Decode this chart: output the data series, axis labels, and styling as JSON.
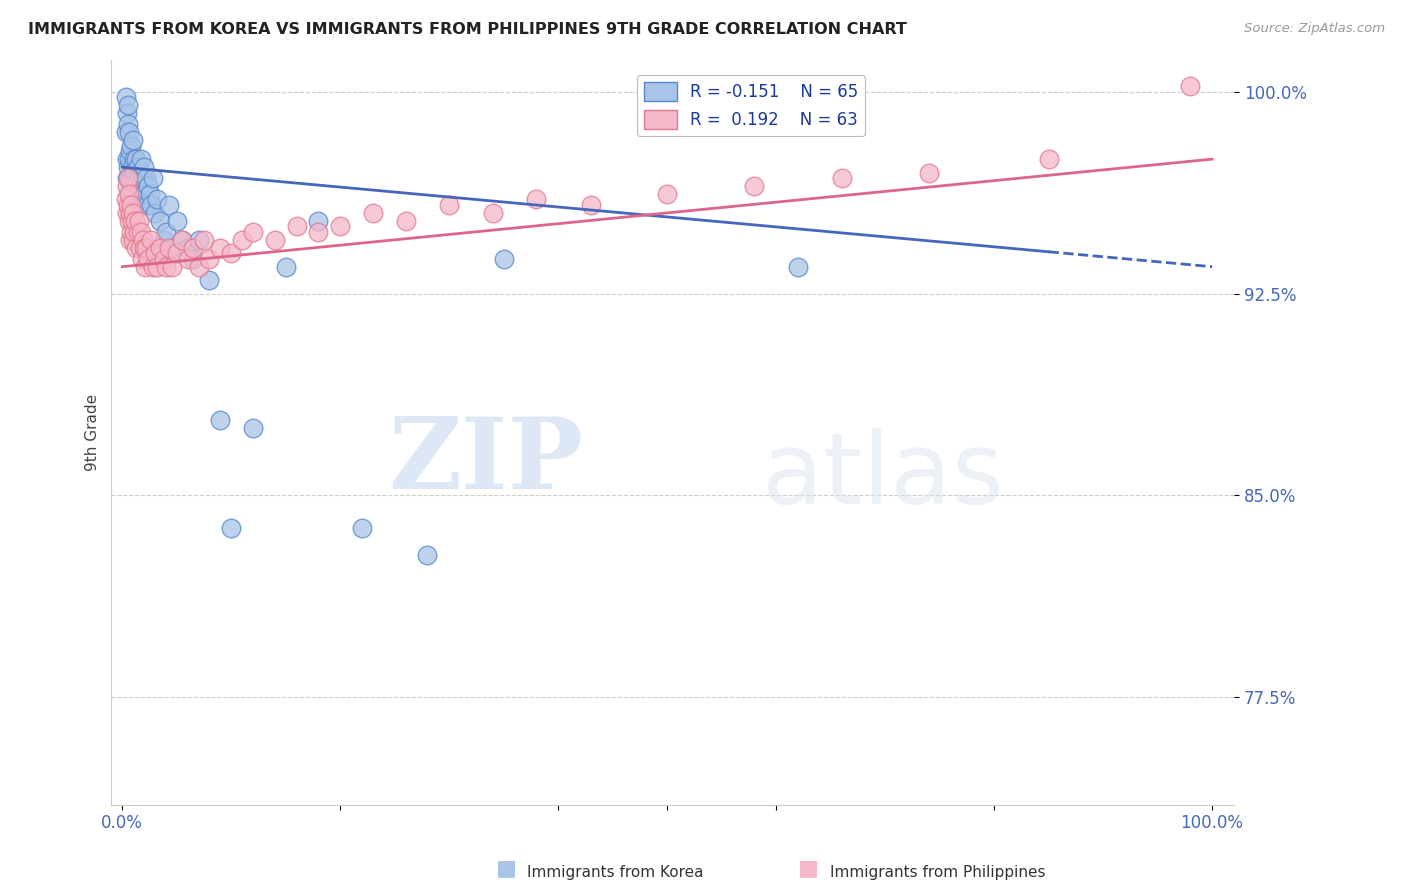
{
  "title": "IMMIGRANTS FROM KOREA VS IMMIGRANTS FROM PHILIPPINES 9TH GRADE CORRELATION CHART",
  "source": "Source: ZipAtlas.com",
  "ylabel": "9th Grade",
  "xlim": [
    0.0,
    1.0
  ],
  "ylim": [
    0.735,
    1.012
  ],
  "yticks": [
    0.775,
    0.85,
    0.925,
    1.0
  ],
  "ytick_labels": [
    "77.5%",
    "85.0%",
    "92.5%",
    "100.0%"
  ],
  "korea_color": "#a8c4e8",
  "korea_edge_color": "#5588cc",
  "philippines_color": "#f5b8c8",
  "philippines_edge_color": "#e07890",
  "trend_korea_color": "#4466bb",
  "trend_philippines_color": "#dd6688",
  "legend_R_korea": "R = -0.151",
  "legend_N_korea": "N = 65",
  "legend_R_phil": "R =  0.192",
  "legend_N_phil": "N = 63",
  "watermark_zip": "ZIP",
  "watermark_atlas": "atlas",
  "background_color": "#ffffff",
  "grid_color": "#cccccc",
  "title_color": "#222222",
  "tick_label_color": "#4466bb",
  "korea_x": [
    0.003,
    0.003,
    0.004,
    0.004,
    0.004,
    0.005,
    0.005,
    0.005,
    0.006,
    0.006,
    0.006,
    0.007,
    0.007,
    0.007,
    0.008,
    0.008,
    0.009,
    0.009,
    0.01,
    0.01,
    0.01,
    0.011,
    0.011,
    0.012,
    0.012,
    0.013,
    0.013,
    0.014,
    0.015,
    0.015,
    0.016,
    0.017,
    0.018,
    0.019,
    0.02,
    0.02,
    0.021,
    0.022,
    0.023,
    0.024,
    0.025,
    0.026,
    0.028,
    0.03,
    0.032,
    0.035,
    0.038,
    0.04,
    0.043,
    0.046,
    0.05,
    0.055,
    0.06,
    0.065,
    0.07,
    0.08,
    0.09,
    0.1,
    0.12,
    0.15,
    0.18,
    0.22,
    0.28,
    0.35,
    0.62
  ],
  "korea_y": [
    0.985,
    0.998,
    0.975,
    0.992,
    0.968,
    0.988,
    0.972,
    0.995,
    0.975,
    0.985,
    0.962,
    0.978,
    0.968,
    0.955,
    0.98,
    0.965,
    0.972,
    0.958,
    0.982,
    0.97,
    0.96,
    0.975,
    0.965,
    0.97,
    0.958,
    0.975,
    0.962,
    0.972,
    0.968,
    0.958,
    0.965,
    0.975,
    0.96,
    0.968,
    0.972,
    0.958,
    0.962,
    0.968,
    0.958,
    0.965,
    0.962,
    0.958,
    0.968,
    0.955,
    0.96,
    0.952,
    0.945,
    0.948,
    0.958,
    0.942,
    0.952,
    0.945,
    0.942,
    0.938,
    0.945,
    0.93,
    0.878,
    0.838,
    0.875,
    0.935,
    0.952,
    0.838,
    0.828,
    0.938,
    0.935
  ],
  "phil_x": [
    0.003,
    0.004,
    0.004,
    0.005,
    0.005,
    0.006,
    0.006,
    0.007,
    0.007,
    0.008,
    0.008,
    0.009,
    0.01,
    0.01,
    0.011,
    0.012,
    0.013,
    0.014,
    0.015,
    0.016,
    0.017,
    0.018,
    0.019,
    0.02,
    0.021,
    0.022,
    0.024,
    0.026,
    0.028,
    0.03,
    0.032,
    0.035,
    0.038,
    0.04,
    0.043,
    0.046,
    0.05,
    0.055,
    0.06,
    0.065,
    0.07,
    0.075,
    0.08,
    0.09,
    0.1,
    0.11,
    0.12,
    0.14,
    0.16,
    0.18,
    0.2,
    0.23,
    0.26,
    0.3,
    0.34,
    0.38,
    0.43,
    0.5,
    0.58,
    0.66,
    0.74,
    0.85,
    0.98
  ],
  "phil_y": [
    0.96,
    0.965,
    0.955,
    0.968,
    0.958,
    0.962,
    0.952,
    0.955,
    0.945,
    0.958,
    0.948,
    0.952,
    0.955,
    0.945,
    0.948,
    0.952,
    0.942,
    0.948,
    0.952,
    0.942,
    0.948,
    0.938,
    0.945,
    0.942,
    0.935,
    0.942,
    0.938,
    0.945,
    0.935,
    0.94,
    0.935,
    0.942,
    0.938,
    0.935,
    0.942,
    0.935,
    0.94,
    0.945,
    0.938,
    0.942,
    0.935,
    0.945,
    0.938,
    0.942,
    0.94,
    0.945,
    0.948,
    0.945,
    0.95,
    0.948,
    0.95,
    0.955,
    0.952,
    0.958,
    0.955,
    0.96,
    0.958,
    0.962,
    0.965,
    0.968,
    0.97,
    0.975,
    1.002
  ]
}
